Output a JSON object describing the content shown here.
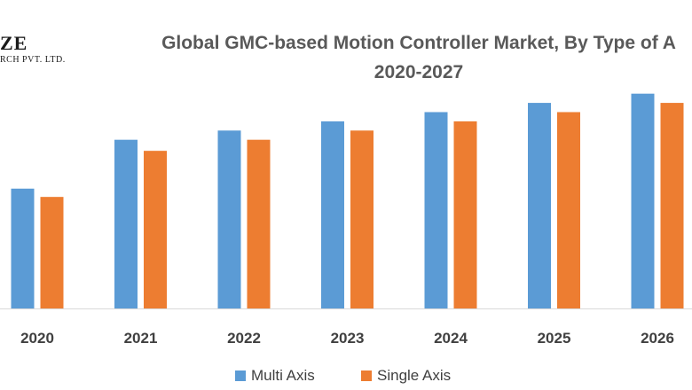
{
  "logo": {
    "line1": "ZE",
    "line2": "RCH PVT. LTD."
  },
  "chart_data": {
    "type": "bar",
    "title_line1": "Global GMC-based Motion Controller Market, By Type of A",
    "title_line2": "2020-2027",
    "categories": [
      "2020",
      "2021",
      "2022",
      "2023",
      "2024",
      "2025",
      "2026"
    ],
    "series": [
      {
        "name": "Multi Axis",
        "color": "#5b9bd5",
        "values": [
          130,
          183,
          193,
          203,
          213,
          223,
          233
        ]
      },
      {
        "name": "Single Axis",
        "color": "#ed7d31",
        "values": [
          121,
          171,
          183,
          193,
          203,
          213,
          223
        ]
      }
    ],
    "ylim": [
      0,
      250
    ],
    "grid": false,
    "legend_position": "bottom"
  }
}
